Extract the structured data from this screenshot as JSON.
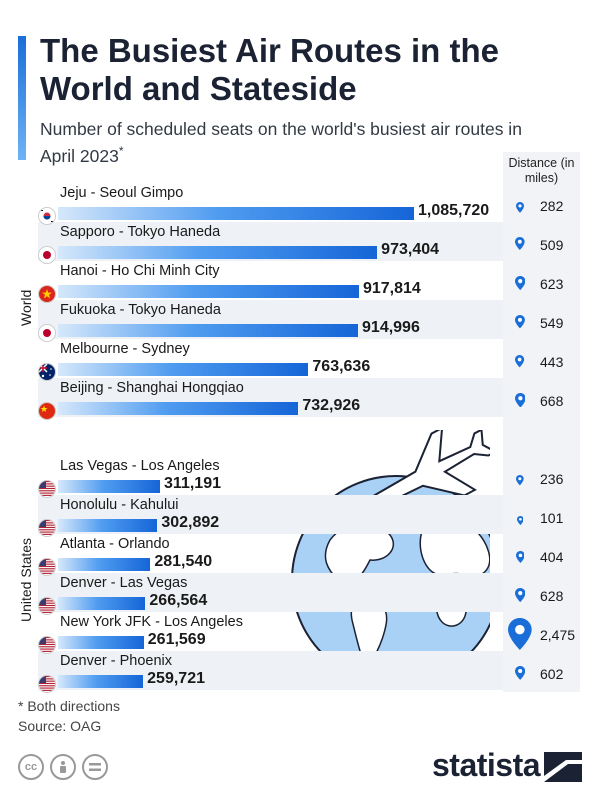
{
  "header": {
    "title": "The Busiest Air Routes in the World and Stateside",
    "subtitle": "Number of scheduled seats on the world's busiest air routes in April 2023",
    "subtitle_mark": "*"
  },
  "distance_header": "Distance (in miles)",
  "sections": {
    "world_label": "World",
    "us_label": "United States"
  },
  "chart_data": {
    "type": "bar",
    "orientation": "horizontal",
    "title": "The Busiest Air Routes in the World and Stateside",
    "subtitle": "Number of scheduled seats on the world's busiest air routes in April 2023*",
    "groups": [
      {
        "name": "World",
        "categories": [
          "Jeju - Seoul Gimpo",
          "Sapporo - Tokyo Haneda",
          "Hanoi - Ho Chi Minh City",
          "Fukuoka - Tokyo Haneda",
          "Melbourne - Sydney",
          "Beijing - Shanghai Hongqiao"
        ],
        "values": [
          1085720,
          973404,
          917814,
          914996,
          763636,
          732926
        ],
        "labels": [
          "1,085,720",
          "973,404",
          "917,814",
          "914,996",
          "763,636",
          "732,926"
        ],
        "distance_miles": [
          "282",
          "509",
          "623",
          "549",
          "443",
          "668"
        ],
        "flags": [
          "south-korea",
          "japan",
          "vietnam",
          "japan",
          "australia",
          "china"
        ]
      },
      {
        "name": "United States",
        "categories": [
          "Las Vegas - Los Angeles",
          "Honolulu - Kahului",
          "Atlanta - Orlando",
          "Denver - Las Vegas",
          "New York JFK - Los Angeles",
          "Denver - Phoenix"
        ],
        "values": [
          311191,
          302892,
          281540,
          266564,
          261569,
          259721
        ],
        "labels": [
          "311,191",
          "302,892",
          "281,540",
          "266,564",
          "261,569",
          "259,721"
        ],
        "distance_miles": [
          "236",
          "101",
          "404",
          "628",
          "2,475",
          "602"
        ],
        "flags": [
          "usa",
          "usa",
          "usa",
          "usa",
          "usa",
          "usa"
        ]
      }
    ],
    "xlim": [
      0,
      1085720
    ],
    "colors": {
      "bar_dark": "#1565d8",
      "bar_light": "#d6e8fb",
      "pin": "#1a6ed8",
      "row_alt": "#eef1f5"
    }
  },
  "footer": {
    "note": "* Both directions",
    "source": "Source: OAG",
    "logo": "statista"
  },
  "icons": [
    "cc-icon",
    "attribution-icon",
    "no-derivatives-icon",
    "airplane-icon",
    "globe-icon",
    "map-pin-icon"
  ]
}
